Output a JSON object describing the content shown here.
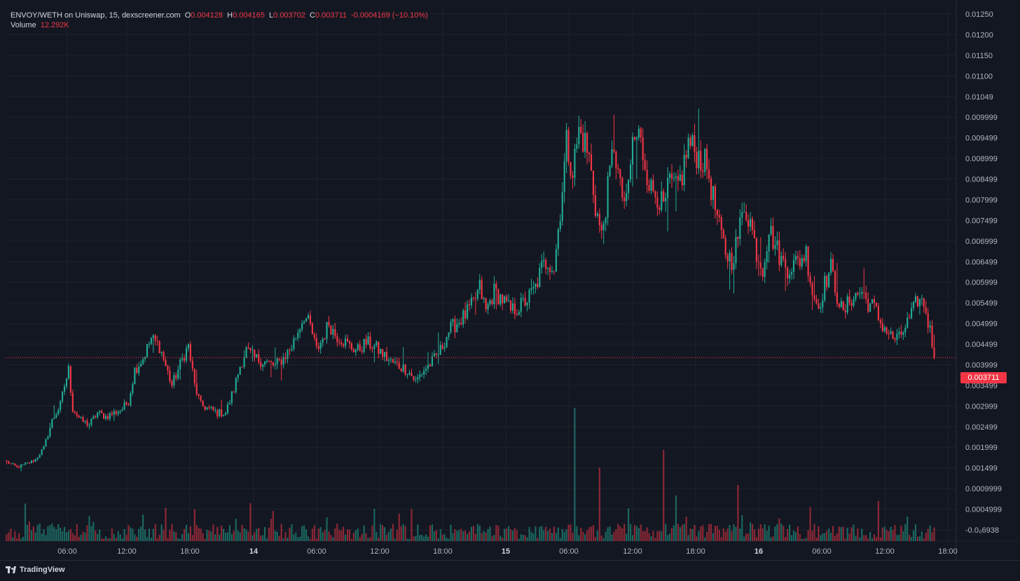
{
  "legend": {
    "symbol": "ENVOY/WETH on Uniswap, 15, dexscreener.com",
    "open_label": "O",
    "open_value": "0.004128",
    "high_label": "H",
    "high_value": "0.004165",
    "low_label": "L",
    "low_value": "0.003702",
    "close_label": "C",
    "close_value": "0.003711",
    "change_value": "-0.0004169 (−10.10%)",
    "volume_label": "Volume",
    "volume_value": "12.292K"
  },
  "last_price_tag": "0.003711",
  "footer": {
    "brand": "TradingView"
  },
  "colors": {
    "up": "#22ab94",
    "down": "#f23645",
    "background": "#131722",
    "grid": "#1e222d",
    "last_price_line": "#f23645"
  },
  "chart_data": {
    "type": "candlestick",
    "interval": "15",
    "pair": "ENVOY/WETH",
    "y_tick_labels": [
      "0.01250",
      "0.01200",
      "0.01150",
      "0.01100",
      "0.01049",
      "0.009999",
      "0.009499",
      "0.008999",
      "0.008499",
      "0.007999",
      "0.007499",
      "0.006999",
      "0.006499",
      "0.005999",
      "0.005499",
      "0.004999",
      "0.004499",
      "0.003999",
      "0.003499",
      "0.002999",
      "0.002499",
      "0.001999",
      "0.001499",
      "0.0009999",
      "0.0004999",
      "-0.0₀6938"
    ],
    "x_tick_labels": [
      "06:00",
      "12:00",
      "18:00",
      "14",
      "06:00",
      "12:00",
      "18:00",
      "15",
      "06:00",
      "12:00",
      "18:00",
      "16",
      "06:00",
      "12:00",
      "18:00"
    ],
    "x_tick_bold": [
      false,
      false,
      false,
      true,
      false,
      false,
      false,
      true,
      false,
      false,
      false,
      true,
      false,
      false,
      false
    ],
    "ylim": [
      -0.0006938,
      0.0125
    ],
    "x_range_hours": [
      "~00:00 day 13",
      "~18:30 day 16"
    ],
    "last_price": 0.003711,
    "anchors": [
      [
        0,
        0.00105
      ],
      [
        5,
        0.0009
      ],
      [
        10,
        0.001
      ],
      [
        14,
        0.0011
      ],
      [
        18,
        0.0014
      ],
      [
        22,
        0.0021
      ],
      [
        26,
        0.0025
      ],
      [
        28,
        0.003
      ],
      [
        30,
        0.0034
      ],
      [
        32,
        0.0024
      ],
      [
        36,
        0.0021
      ],
      [
        40,
        0.002
      ],
      [
        44,
        0.0023
      ],
      [
        48,
        0.0022
      ],
      [
        52,
        0.0023
      ],
      [
        56,
        0.0024
      ],
      [
        59,
        0.0026
      ],
      [
        62,
        0.0034
      ],
      [
        66,
        0.0037
      ],
      [
        70,
        0.0042
      ],
      [
        74,
        0.004
      ],
      [
        77,
        0.0035
      ],
      [
        80,
        0.003
      ],
      [
        83,
        0.0034
      ],
      [
        86,
        0.0038
      ],
      [
        88,
        0.004
      ],
      [
        91,
        0.003
      ],
      [
        94,
        0.0025
      ],
      [
        98,
        0.0024
      ],
      [
        102,
        0.0023
      ],
      [
        106,
        0.0023
      ],
      [
        110,
        0.0029
      ],
      [
        113,
        0.0035
      ],
      [
        116,
        0.0039
      ],
      [
        120,
        0.0037
      ],
      [
        125,
        0.0036
      ],
      [
        130,
        0.0035
      ],
      [
        134,
        0.0037
      ],
      [
        138,
        0.004
      ],
      [
        141,
        0.0044
      ],
      [
        144,
        0.0048
      ],
      [
        147,
        0.0045
      ],
      [
        150,
        0.0039
      ],
      [
        153,
        0.0042
      ],
      [
        156,
        0.0046
      ],
      [
        159,
        0.0043
      ],
      [
        162,
        0.0042
      ],
      [
        166,
        0.004
      ],
      [
        170,
        0.0039
      ],
      [
        174,
        0.0041
      ],
      [
        178,
        0.004
      ],
      [
        182,
        0.0038
      ],
      [
        186,
        0.0036
      ],
      [
        190,
        0.0035
      ],
      [
        194,
        0.0034
      ],
      [
        198,
        0.0031
      ],
      [
        202,
        0.0034
      ],
      [
        206,
        0.0036
      ],
      [
        210,
        0.0039
      ],
      [
        214,
        0.0044
      ],
      [
        218,
        0.0046
      ],
      [
        222,
        0.0048
      ],
      [
        226,
        0.0051
      ],
      [
        229,
        0.0055
      ],
      [
        232,
        0.0049
      ],
      [
        236,
        0.0054
      ],
      [
        240,
        0.0052
      ],
      [
        244,
        0.0049
      ],
      [
        248,
        0.005
      ],
      [
        252,
        0.0052
      ],
      [
        256,
        0.0055
      ],
      [
        259,
        0.006
      ],
      [
        262,
        0.0062
      ],
      [
        265,
        0.006
      ],
      [
        268,
        0.0075
      ],
      [
        271,
        0.0092
      ],
      [
        274,
        0.0085
      ],
      [
        277,
        0.0095
      ],
      [
        280,
        0.0092
      ],
      [
        282,
        0.0088
      ],
      [
        285,
        0.0076
      ],
      [
        288,
        0.0068
      ],
      [
        291,
        0.008
      ],
      [
        294,
        0.0092
      ],
      [
        297,
        0.008
      ],
      [
        300,
        0.0076
      ],
      [
        303,
        0.0092
      ],
      [
        306,
        0.0094
      ],
      [
        309,
        0.0087
      ],
      [
        312,
        0.008
      ],
      [
        315,
        0.0079
      ],
      [
        318,
        0.0075
      ],
      [
        321,
        0.0082
      ],
      [
        324,
        0.008
      ],
      [
        327,
        0.0084
      ],
      [
        330,
        0.0092
      ],
      [
        333,
        0.009
      ],
      [
        336,
        0.0088
      ],
      [
        339,
        0.0086
      ],
      [
        342,
        0.0078
      ],
      [
        345,
        0.007
      ],
      [
        348,
        0.0064
      ],
      [
        351,
        0.0062
      ],
      [
        354,
        0.0068
      ],
      [
        357,
        0.0076
      ],
      [
        360,
        0.0072
      ],
      [
        363,
        0.0064
      ],
      [
        366,
        0.006
      ],
      [
        369,
        0.007
      ],
      [
        372,
        0.0066
      ],
      [
        375,
        0.0062
      ],
      [
        378,
        0.006
      ],
      [
        381,
        0.0061
      ],
      [
        384,
        0.0062
      ],
      [
        387,
        0.0064
      ],
      [
        390,
        0.0054
      ],
      [
        393,
        0.005
      ],
      [
        396,
        0.0056
      ],
      [
        399,
        0.006
      ],
      [
        402,
        0.0053
      ],
      [
        405,
        0.0048
      ],
      [
        408,
        0.0052
      ],
      [
        411,
        0.0053
      ],
      [
        414,
        0.0054
      ],
      [
        417,
        0.0051
      ],
      [
        420,
        0.005
      ],
      [
        423,
        0.0046
      ],
      [
        426,
        0.0044
      ],
      [
        429,
        0.0042
      ],
      [
        432,
        0.0042
      ],
      [
        435,
        0.0045
      ],
      [
        438,
        0.0048
      ],
      [
        441,
        0.0052
      ],
      [
        444,
        0.0051
      ],
      [
        447,
        0.0044
      ],
      [
        449,
        0.00371
      ]
    ]
  }
}
